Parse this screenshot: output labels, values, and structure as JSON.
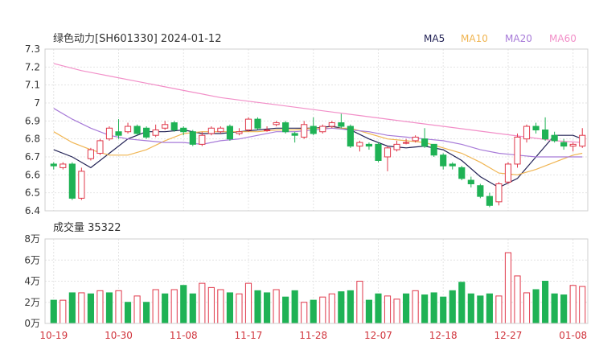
{
  "chart_data": [
    {
      "type": "candlestick",
      "title": "绿色动力[SH601330] 2024-01-12",
      "ylim": [
        6.4,
        7.3
      ],
      "yticks": [
        "7.3",
        "7.2",
        "7.1",
        "7",
        "6.9",
        "6.8",
        "6.7",
        "6.6",
        "6.5",
        "6.4"
      ],
      "ytick_values": [
        7.3,
        7.2,
        7.1,
        7.0,
        6.9,
        6.8,
        6.7,
        6.6,
        6.5,
        6.4
      ],
      "xticks": [
        {
          "label": "10-19",
          "index": 0
        },
        {
          "label": "10-30",
          "index": 7
        },
        {
          "label": "11-08",
          "index": 14
        },
        {
          "label": "11-17",
          "index": 21
        },
        {
          "label": "11-28",
          "index": 28
        },
        {
          "label": "12-07",
          "index": 35
        },
        {
          "label": "12-18",
          "index": 42
        },
        {
          "label": "12-27",
          "index": 49
        },
        {
          "label": "01-08",
          "index": 56
        }
      ],
      "legend": [
        {
          "name": "MA5",
          "color": "#222255"
        },
        {
          "name": "MA10",
          "color": "#f0b552"
        },
        {
          "name": "MA20",
          "color": "#a77ad8"
        },
        {
          "name": "MA60",
          "color": "#f28fc8"
        }
      ],
      "grid": true,
      "candles": [
        [
          6.66,
          6.65,
          6.67,
          6.63
        ],
        [
          6.64,
          6.66,
          6.67,
          6.63
        ],
        [
          6.66,
          6.47,
          6.67,
          6.46
        ],
        [
          6.47,
          6.62,
          6.64,
          6.46
        ],
        [
          6.69,
          6.74,
          6.75,
          6.68
        ],
        [
          6.72,
          6.79,
          6.8,
          6.71
        ],
        [
          6.8,
          6.86,
          6.87,
          6.79
        ],
        [
          6.84,
          6.82,
          6.91,
          6.8
        ],
        [
          6.84,
          6.87,
          6.89,
          6.83
        ],
        [
          6.87,
          6.83,
          6.88,
          6.82
        ],
        [
          6.86,
          6.81,
          6.87,
          6.8
        ],
        [
          6.82,
          6.85,
          6.88,
          6.81
        ],
        [
          6.86,
          6.88,
          6.9,
          6.85
        ],
        [
          6.89,
          6.85,
          6.9,
          6.84
        ],
        [
          6.86,
          6.84,
          6.87,
          6.82
        ],
        [
          6.84,
          6.77,
          6.85,
          6.76
        ],
        [
          6.77,
          6.82,
          6.84,
          6.76
        ],
        [
          6.83,
          6.86,
          6.87,
          6.82
        ],
        [
          6.84,
          6.86,
          6.87,
          6.83
        ],
        [
          6.87,
          6.8,
          6.88,
          6.79
        ],
        [
          6.83,
          6.84,
          6.86,
          6.82
        ],
        [
          6.85,
          6.91,
          6.92,
          6.84
        ],
        [
          6.91,
          6.86,
          6.92,
          6.85
        ],
        [
          6.85,
          6.85,
          6.87,
          6.84
        ],
        [
          6.88,
          6.89,
          6.9,
          6.87
        ],
        [
          6.89,
          6.84,
          6.9,
          6.83
        ],
        [
          6.83,
          6.82,
          6.84,
          6.78
        ],
        [
          6.81,
          6.88,
          6.9,
          6.8
        ],
        [
          6.87,
          6.83,
          6.92,
          6.82
        ],
        [
          6.84,
          6.87,
          6.88,
          6.83
        ],
        [
          6.87,
          6.89,
          6.9,
          6.86
        ],
        [
          6.89,
          6.87,
          6.94,
          6.86
        ],
        [
          6.87,
          6.76,
          6.88,
          6.75
        ],
        [
          6.76,
          6.78,
          6.79,
          6.73
        ],
        [
          6.77,
          6.76,
          6.78,
          6.74
        ],
        [
          6.77,
          6.68,
          6.78,
          6.67
        ],
        [
          6.7,
          6.75,
          6.76,
          6.62
        ],
        [
          6.74,
          6.77,
          6.79,
          6.73
        ],
        [
          6.78,
          6.78,
          6.8,
          6.77
        ],
        [
          6.79,
          6.81,
          6.82,
          6.78
        ],
        [
          6.8,
          6.76,
          6.86,
          6.75
        ],
        [
          6.77,
          6.71,
          6.77,
          6.7
        ],
        [
          6.71,
          6.65,
          6.72,
          6.63
        ],
        [
          6.66,
          6.65,
          6.67,
          6.63
        ],
        [
          6.64,
          6.58,
          6.65,
          6.57
        ],
        [
          6.57,
          6.55,
          6.59,
          6.53
        ],
        [
          6.54,
          6.48,
          6.55,
          6.47
        ],
        [
          6.48,
          6.43,
          6.5,
          6.42
        ],
        [
          6.45,
          6.55,
          6.56,
          6.43
        ],
        [
          6.56,
          6.66,
          6.67,
          6.55
        ],
        [
          6.66,
          6.81,
          6.83,
          6.64
        ],
        [
          6.8,
          6.87,
          6.88,
          6.78
        ],
        [
          6.87,
          6.85,
          6.89,
          6.83
        ],
        [
          6.85,
          6.8,
          6.92,
          6.79
        ],
        [
          6.82,
          6.79,
          6.84,
          6.78
        ],
        [
          6.78,
          6.76,
          6.8,
          6.74
        ],
        [
          6.76,
          6.77,
          6.78,
          6.73
        ],
        [
          6.76,
          6.82,
          6.86,
          6.75
        ]
      ],
      "ma5": [
        [
          0,
          6.74
        ],
        [
          2,
          6.7
        ],
        [
          4,
          6.64
        ],
        [
          6,
          6.72
        ],
        [
          8,
          6.8
        ],
        [
          10,
          6.84
        ],
        [
          12,
          6.84
        ],
        [
          14,
          6.85
        ],
        [
          16,
          6.83
        ],
        [
          18,
          6.83
        ],
        [
          20,
          6.84
        ],
        [
          22,
          6.85
        ],
        [
          24,
          6.86
        ],
        [
          26,
          6.86
        ],
        [
          28,
          6.86
        ],
        [
          30,
          6.87
        ],
        [
          32,
          6.85
        ],
        [
          34,
          6.8
        ],
        [
          36,
          6.76
        ],
        [
          38,
          6.75
        ],
        [
          40,
          6.76
        ],
        [
          42,
          6.74
        ],
        [
          44,
          6.68
        ],
        [
          46,
          6.59
        ],
        [
          48,
          6.53
        ],
        [
          50,
          6.58
        ],
        [
          52,
          6.7
        ],
        [
          54,
          6.82
        ],
        [
          56,
          6.82
        ],
        [
          57,
          6.8
        ]
      ],
      "ma10": [
        [
          0,
          6.84
        ],
        [
          2,
          6.78
        ],
        [
          4,
          6.74
        ],
        [
          6,
          6.71
        ],
        [
          8,
          6.71
        ],
        [
          10,
          6.74
        ],
        [
          12,
          6.79
        ],
        [
          14,
          6.83
        ],
        [
          16,
          6.84
        ],
        [
          18,
          6.84
        ],
        [
          20,
          6.84
        ],
        [
          22,
          6.84
        ],
        [
          24,
          6.85
        ],
        [
          26,
          6.85
        ],
        [
          28,
          6.86
        ],
        [
          30,
          6.86
        ],
        [
          32,
          6.86
        ],
        [
          34,
          6.83
        ],
        [
          36,
          6.8
        ],
        [
          38,
          6.79
        ],
        [
          40,
          6.78
        ],
        [
          42,
          6.75
        ],
        [
          44,
          6.72
        ],
        [
          46,
          6.67
        ],
        [
          48,
          6.61
        ],
        [
          50,
          6.6
        ],
        [
          52,
          6.63
        ],
        [
          54,
          6.67
        ],
        [
          56,
          6.71
        ],
        [
          57,
          6.72
        ]
      ],
      "ma20": [
        [
          0,
          6.97
        ],
        [
          2,
          6.91
        ],
        [
          4,
          6.86
        ],
        [
          6,
          6.82
        ],
        [
          8,
          6.8
        ],
        [
          10,
          6.79
        ],
        [
          12,
          6.78
        ],
        [
          14,
          6.78
        ],
        [
          16,
          6.77
        ],
        [
          18,
          6.79
        ],
        [
          20,
          6.8
        ],
        [
          22,
          6.82
        ],
        [
          24,
          6.84
        ],
        [
          26,
          6.84
        ],
        [
          28,
          6.85
        ],
        [
          30,
          6.86
        ],
        [
          32,
          6.85
        ],
        [
          34,
          6.84
        ],
        [
          36,
          6.82
        ],
        [
          38,
          6.81
        ],
        [
          40,
          6.8
        ],
        [
          42,
          6.79
        ],
        [
          44,
          6.77
        ],
        [
          46,
          6.74
        ],
        [
          48,
          6.72
        ],
        [
          50,
          6.71
        ],
        [
          52,
          6.7
        ],
        [
          54,
          6.7
        ],
        [
          56,
          6.7
        ],
        [
          57,
          6.7
        ]
      ],
      "ma60": [
        [
          0,
          7.22
        ],
        [
          3,
          7.18
        ],
        [
          6,
          7.15
        ],
        [
          9,
          7.12
        ],
        [
          12,
          7.09
        ],
        [
          15,
          7.06
        ],
        [
          18,
          7.03
        ],
        [
          21,
          7.01
        ],
        [
          24,
          6.99
        ],
        [
          27,
          6.97
        ],
        [
          30,
          6.95
        ],
        [
          33,
          6.93
        ],
        [
          36,
          6.91
        ],
        [
          39,
          6.89
        ],
        [
          42,
          6.87
        ],
        [
          45,
          6.85
        ],
        [
          48,
          6.83
        ],
        [
          51,
          6.81
        ],
        [
          54,
          6.79
        ],
        [
          57,
          6.78
        ]
      ]
    },
    {
      "type": "bar",
      "title": "成交量 35322",
      "ylim": [
        0,
        80000
      ],
      "yticks": [
        "8万",
        "6万",
        "4万",
        "2万",
        "0万"
      ],
      "ytick_values": [
        80000,
        60000,
        40000,
        20000,
        0
      ],
      "values": [
        22000,
        22000,
        29000,
        29000,
        28000,
        31000,
        29000,
        31000,
        20000,
        26000,
        20000,
        32000,
        28000,
        32000,
        36000,
        28000,
        38000,
        34000,
        32000,
        29000,
        28000,
        38000,
        31000,
        29000,
        32000,
        25000,
        31000,
        20000,
        22000,
        25000,
        28000,
        30000,
        31000,
        40000,
        22000,
        28000,
        26000,
        23000,
        28000,
        31000,
        27000,
        29000,
        25000,
        31000,
        39000,
        28000,
        26000,
        28000,
        26000,
        67000,
        45000,
        29000,
        32000,
        40000,
        28000,
        27000,
        36000,
        35000
      ],
      "rising": [
        false,
        true,
        false,
        true,
        false,
        true,
        false,
        true,
        false,
        true,
        false,
        true,
        false,
        true,
        false,
        false,
        true,
        true,
        true,
        false,
        true,
        true,
        false,
        false,
        true,
        false,
        false,
        true,
        false,
        true,
        true,
        false,
        false,
        true,
        false,
        false,
        true,
        true,
        false,
        true,
        false,
        false,
        false,
        false,
        false,
        false,
        false,
        false,
        true,
        true,
        true,
        true,
        false,
        false,
        false,
        false,
        true,
        true
      ]
    }
  ]
}
